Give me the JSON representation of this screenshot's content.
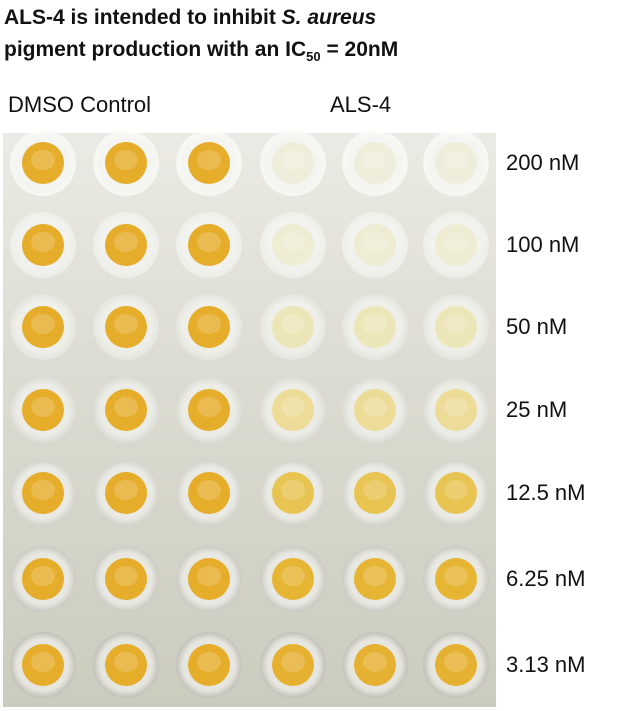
{
  "title": {
    "line1_a": "ALS-4 is intended to inhibit ",
    "line1_italic": "S. aureus",
    "line2_a": "pigment production with an IC",
    "line2_sub": "50",
    "line2_b": " = 20nM"
  },
  "columns": {
    "control": "DMSO Control",
    "treated": "ALS-4"
  },
  "colors": {
    "control_pigment": "#e6ad2a",
    "well_rim_top": "#f6f6f2",
    "well_rim_bottom": "#b9b9ac"
  },
  "rows": [
    {
      "label": "200 nM",
      "als4_pigment": "#efeedb"
    },
    {
      "label": "100 nM",
      "als4_pigment": "#eeecd2"
    },
    {
      "label": "50 nM",
      "als4_pigment": "#ece5b8"
    },
    {
      "label": "25 nM",
      "als4_pigment": "#ecdc98"
    },
    {
      "label": "12.5 nM",
      "als4_pigment": "#e8c452"
    },
    {
      "label": "6.25 nM",
      "als4_pigment": "#e6b534"
    },
    {
      "label": "3.13 nM",
      "als4_pigment": "#e6b030"
    }
  ]
}
